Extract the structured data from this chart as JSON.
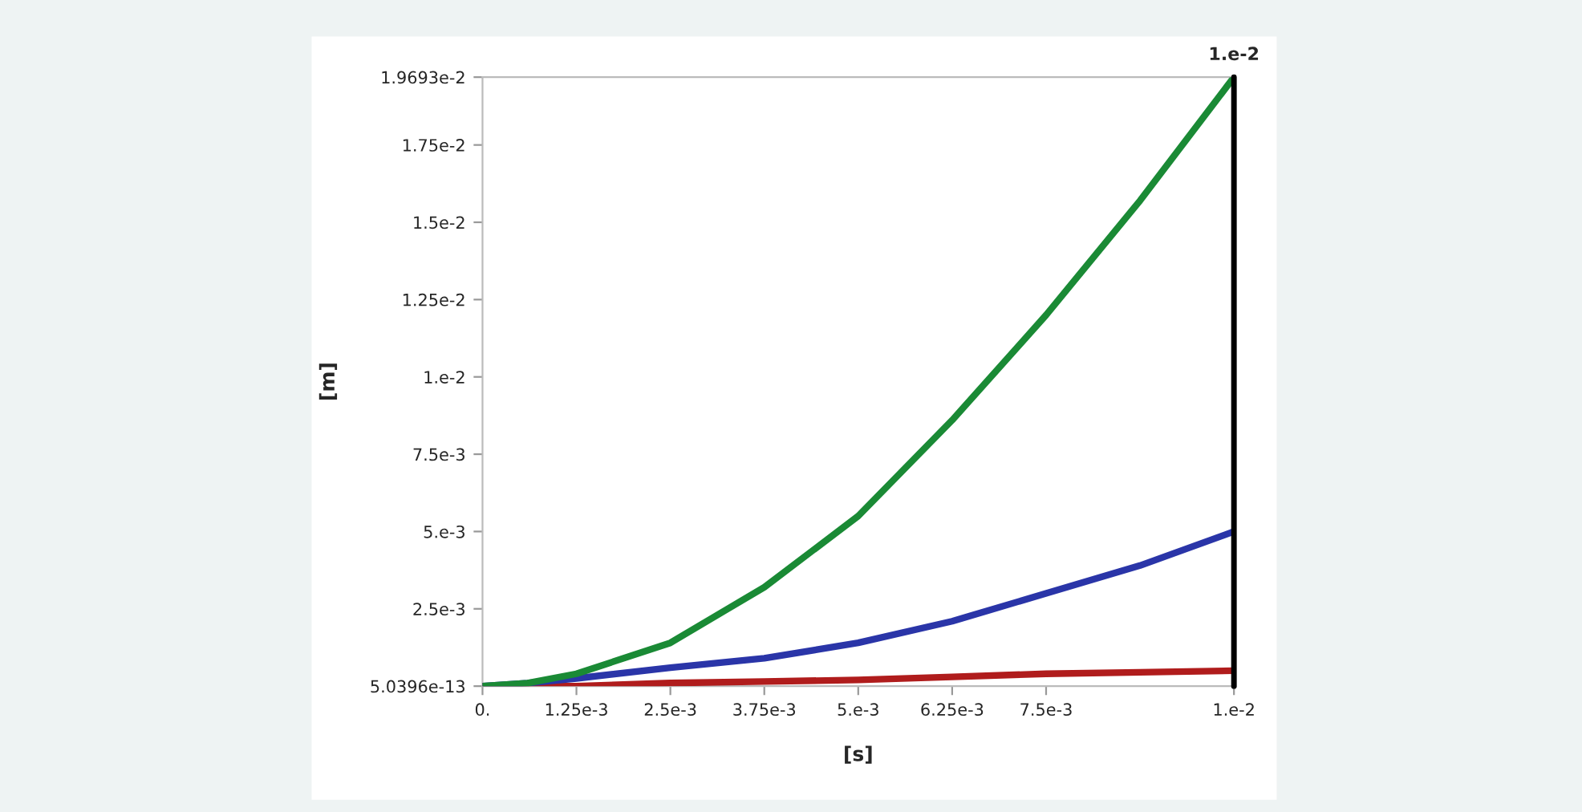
{
  "chart_data": {
    "type": "line",
    "xlabel": "[s]",
    "ylabel": "[m]",
    "x": [
      0,
      0.0006,
      0.00125,
      0.0025,
      0.00375,
      0.005,
      0.00625,
      0.0075,
      0.00875,
      0.01
    ],
    "series": [
      {
        "color": "#1a8a35",
        "values": [
          5.0396e-13,
          0.0001,
          0.0004,
          0.0014,
          0.0032,
          0.0055,
          0.0086,
          0.012,
          0.0157,
          0.019693
        ]
      },
      {
        "color": "#2a35a8",
        "values": [
          5.0396e-13,
          0.0001,
          0.00025,
          0.0006,
          0.0009,
          0.0014,
          0.0021,
          0.003,
          0.0039,
          0.005
        ]
      },
      {
        "color": "#b01c1c",
        "values": [
          5.0396e-13,
          5.0396e-13,
          5.0396e-13,
          0.0001,
          0.00015,
          0.0002,
          0.0003,
          0.0004,
          0.00045,
          0.0005
        ]
      }
    ],
    "xlim": [
      0,
      0.01
    ],
    "ylim": [
      5.0396e-13,
      0.019693
    ],
    "xticks": [
      {
        "value": 0,
        "label": "0."
      },
      {
        "value": 0.00125,
        "label": "1.25e-3"
      },
      {
        "value": 0.0025,
        "label": "2.5e-3"
      },
      {
        "value": 0.00375,
        "label": "3.75e-3"
      },
      {
        "value": 0.005,
        "label": "5.e-3"
      },
      {
        "value": 0.00625,
        "label": "6.25e-3"
      },
      {
        "value": 0.0075,
        "label": "7.5e-3"
      },
      {
        "value": 0.01,
        "label": "1.e-2"
      }
    ],
    "yticks": [
      {
        "value": 5.0396e-13,
        "label": "5.0396e-13"
      },
      {
        "value": 0.0025,
        "label": "2.5e-3"
      },
      {
        "value": 0.005,
        "label": "5.e-3"
      },
      {
        "value": 0.0075,
        "label": "7.5e-3"
      },
      {
        "value": 0.01,
        "label": "1.e-2"
      },
      {
        "value": 0.0125,
        "label": "1.25e-2"
      },
      {
        "value": 0.015,
        "label": "1.5e-2"
      },
      {
        "value": 0.0175,
        "label": "1.75e-2"
      },
      {
        "value": 0.019693,
        "label": "1.9693e-2"
      }
    ],
    "ref_lines": [
      {
        "axis": "x",
        "value": 0.01,
        "label": "1.e-2",
        "color": "#000000"
      }
    ],
    "grid": false,
    "legend": false,
    "marker": "none",
    "line_style": "solid"
  }
}
